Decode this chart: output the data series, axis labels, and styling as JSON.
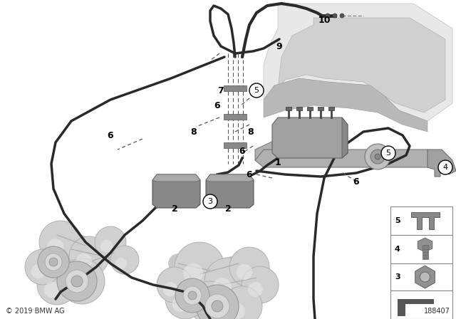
{
  "bg_color": "#ffffff",
  "copyright": "© 2019 BMW AG",
  "part_number": "188407",
  "fig_width": 6.4,
  "fig_height": 4.48,
  "dpi": 100,
  "line_color": "#2a2a2a",
  "dashed_line_color": "#555555",
  "label_color": "#000000",
  "sidebar_edge_color": "#aaaaaa",
  "engine_color1": "#d0d0d0",
  "engine_color2": "#b8b8b8",
  "engine_color3": "#e8e8e8",
  "hose_lw": 2.5,
  "thin_lw": 1.0
}
